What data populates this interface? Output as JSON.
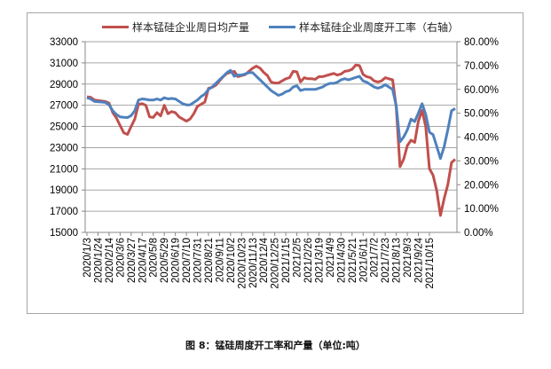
{
  "legend": {
    "series1": "样本锰硅企业周日均产量",
    "series2": "样本锰硅企业周度开工率（右轴）"
  },
  "caption": "图 8：锰硅周度开工率和产量（单位:吨）",
  "colors": {
    "series1": "#c0504d",
    "series2": "#4f81bd",
    "grid": "#a6a6a6"
  },
  "chart_data": {
    "type": "line",
    "title": "",
    "xlabel": "",
    "ylabel": "",
    "ylim": [
      15000,
      33000
    ],
    "y2lim": [
      0,
      0.8
    ],
    "grid": true,
    "legend_position": "top",
    "yticks": [
      "15000",
      "17000",
      "19000",
      "21000",
      "23000",
      "25000",
      "27000",
      "29000",
      "31000",
      "33000"
    ],
    "y2ticks": [
      "0.00%",
      "10.00%",
      "20.00%",
      "30.00%",
      "40.00%",
      "50.00%",
      "60.00%",
      "70.00%",
      "80.00%"
    ],
    "xtick_labels": [
      "2020/1/3",
      "2020/1/24",
      "2020/2/14",
      "2020/3/6",
      "2020/3/27",
      "2020/4/17",
      "2020/5/8",
      "2020/5/29",
      "2020/6/19",
      "2020/7/10",
      "2020/7/31",
      "2020/8/21",
      "2020/9/11",
      "2020/10/2",
      "2020/10/23",
      "2020/11/13",
      "2020/12/4",
      "2020/12/25",
      "2021/1/15",
      "2021/2/5",
      "2021/2/26",
      "2021/3/19",
      "2021/4/9",
      "2021/4/30",
      "2021/5/21",
      "2021/6/11",
      "2021/7/2",
      "2021/7/23",
      "2021/8/13",
      "2021/9/3",
      "2021/9/24",
      "2021/10/15"
    ],
    "series": [
      {
        "name": "样本锰硅企业周日均产量",
        "axis": "left",
        "values": [
          27800,
          27750,
          27500,
          27450,
          27400,
          27350,
          27200,
          26300,
          25800,
          25100,
          24400,
          24250,
          25000,
          25700,
          27100,
          27150,
          27000,
          25900,
          25850,
          26300,
          26000,
          27000,
          26200,
          26400,
          26300,
          25900,
          25700,
          25500,
          25700,
          26200,
          26900,
          27100,
          27300,
          28600,
          28700,
          28900,
          29300,
          29700,
          30000,
          30100,
          30200,
          29700,
          29800,
          29900,
          30200,
          30500,
          30700,
          30500,
          30100,
          29800,
          29200,
          29100,
          29100,
          29300,
          29500,
          29600,
          30200,
          30150,
          29200,
          29600,
          29500,
          29500,
          29450,
          29700,
          29700,
          29800,
          29900,
          30000,
          29850,
          29950,
          30200,
          30250,
          30400,
          30800,
          30750,
          29900,
          29700,
          29600,
          29300,
          29200,
          29300,
          29600,
          29500,
          29400,
          26800,
          21200,
          21900,
          23200,
          23700,
          23500,
          25500,
          26500,
          25000,
          21000,
          20400,
          18900,
          16600,
          18200,
          19500,
          21600,
          21900
        ]
      },
      {
        "name": "样本锰硅企业周度开工率（右轴）",
        "axis": "right",
        "values": [
          0.565,
          0.56,
          0.55,
          0.548,
          0.547,
          0.545,
          0.535,
          0.51,
          0.495,
          0.485,
          0.483,
          0.482,
          0.49,
          0.51,
          0.555,
          0.56,
          0.558,
          0.555,
          0.555,
          0.56,
          0.555,
          0.565,
          0.56,
          0.562,
          0.56,
          0.55,
          0.54,
          0.535,
          0.535,
          0.545,
          0.555,
          0.57,
          0.58,
          0.6,
          0.61,
          0.625,
          0.64,
          0.655,
          0.67,
          0.68,
          0.655,
          0.66,
          0.66,
          0.665,
          0.67,
          0.67,
          0.655,
          0.64,
          0.625,
          0.61,
          0.595,
          0.585,
          0.575,
          0.58,
          0.59,
          0.595,
          0.61,
          0.615,
          0.595,
          0.6,
          0.6,
          0.6,
          0.6,
          0.605,
          0.61,
          0.62,
          0.625,
          0.625,
          0.63,
          0.64,
          0.645,
          0.64,
          0.645,
          0.65,
          0.655,
          0.635,
          0.63,
          0.62,
          0.61,
          0.605,
          0.61,
          0.62,
          0.61,
          0.6,
          0.53,
          0.38,
          0.4,
          0.43,
          0.475,
          0.465,
          0.5,
          0.54,
          0.495,
          0.42,
          0.41,
          0.36,
          0.31,
          0.36,
          0.43,
          0.51,
          0.52
        ]
      }
    ]
  }
}
